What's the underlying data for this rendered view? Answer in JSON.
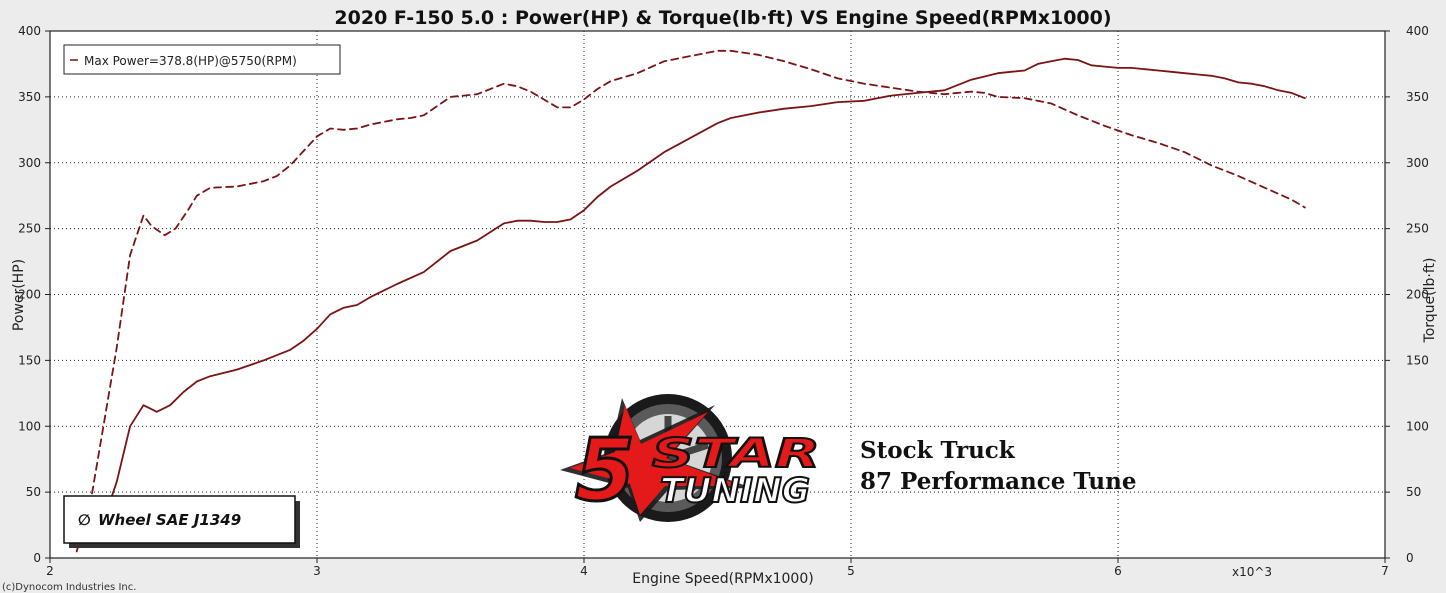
{
  "chart_data": {
    "type": "line",
    "title": "2020 F-150 5.0  : Power(HP) & Torque(lb·ft) VS Engine Speed(RPMx1000)",
    "xlabel": "Engine Speed(RPMx1000)",
    "ylabel_left": "Power(HP)",
    "ylabel_right": "Torque(lb·ft)",
    "x_multiplier_label": "x10^3",
    "xlim": [
      2,
      7
    ],
    "ylim": [
      0,
      400
    ],
    "x_ticks": [
      2,
      3,
      4,
      5,
      6,
      7
    ],
    "y_ticks": [
      0,
      50,
      100,
      150,
      200,
      250,
      300,
      350,
      400
    ],
    "grid": true,
    "legend_text": "Max Power=378.8(HP)@5750(RPM)",
    "legend_position": "top-left",
    "series": [
      {
        "name": "Power(HP)",
        "axis": "left",
        "style": "solid",
        "color": "#7a1414",
        "x": [
          2.17,
          2.25,
          2.3,
          2.35,
          2.4,
          2.45,
          2.5,
          2.55,
          2.6,
          2.7,
          2.8,
          2.9,
          2.95,
          3.0,
          3.05,
          3.1,
          3.15,
          3.2,
          3.3,
          3.4,
          3.5,
          3.6,
          3.7,
          3.75,
          3.8,
          3.85,
          3.9,
          3.95,
          4.0,
          4.05,
          4.1,
          4.2,
          4.3,
          4.4,
          4.5,
          4.55,
          4.65,
          4.75,
          4.85,
          4.95,
          5.05,
          5.15,
          5.25,
          5.35,
          5.45,
          5.55,
          5.6,
          5.65,
          5.7,
          5.75,
          5.8,
          5.85,
          5.9,
          5.95,
          6.0,
          6.05,
          6.1,
          6.15,
          6.2,
          6.25,
          6.3,
          6.35,
          6.4,
          6.45,
          6.5,
          6.55,
          6.6,
          6.65,
          6.7
        ],
        "values": [
          10,
          58,
          100,
          116,
          111,
          116,
          126,
          134,
          138,
          143,
          150,
          158,
          165,
          174,
          185,
          190,
          192,
          198,
          208,
          217,
          233,
          241,
          254,
          256,
          256,
          255,
          255,
          257,
          264,
          274,
          282,
          294,
          308,
          319,
          330,
          334,
          338,
          341,
          343,
          346,
          347,
          351,
          353,
          355,
          363,
          368,
          369,
          370,
          375,
          377,
          379,
          378,
          374,
          373,
          372,
          372,
          371,
          370,
          369,
          368,
          367,
          366,
          364,
          361,
          360,
          358,
          355,
          353,
          349
        ]
      },
      {
        "name": "Torque(lb·ft)",
        "axis": "right",
        "style": "dashed",
        "color": "#7a1414",
        "x": [
          2.1,
          2.15,
          2.2,
          2.25,
          2.3,
          2.35,
          2.38,
          2.43,
          2.47,
          2.52,
          2.55,
          2.6,
          2.7,
          2.8,
          2.85,
          2.9,
          2.95,
          3.0,
          3.05,
          3.1,
          3.15,
          3.2,
          3.3,
          3.35,
          3.4,
          3.5,
          3.55,
          3.6,
          3.7,
          3.75,
          3.8,
          3.85,
          3.9,
          3.95,
          4.0,
          4.05,
          4.1,
          4.2,
          4.3,
          4.4,
          4.5,
          4.55,
          4.65,
          4.75,
          4.85,
          4.95,
          5.05,
          5.15,
          5.25,
          5.35,
          5.45,
          5.5,
          5.55,
          5.65,
          5.75,
          5.85,
          5.95,
          6.05,
          6.15,
          6.25,
          6.35,
          6.45,
          6.55,
          6.65,
          6.7
        ],
        "values": [
          5,
          40,
          100,
          160,
          230,
          260,
          252,
          245,
          250,
          265,
          275,
          281,
          282,
          286,
          290,
          298,
          309,
          320,
          326,
          325,
          326,
          329,
          333,
          334,
          336,
          350,
          351,
          352,
          360,
          358,
          354,
          348,
          342,
          342,
          348,
          356,
          362,
          368,
          377,
          381,
          385,
          385,
          382,
          377,
          371,
          364,
          360,
          357,
          354,
          352,
          354,
          353,
          350,
          349,
          345,
          336,
          328,
          321,
          315,
          308,
          298,
          290,
          281,
          272,
          266
        ]
      }
    ]
  },
  "badge": {
    "text": "Wheel SAE J1349",
    "symbol": "∅"
  },
  "notes": {
    "line1": "Stock Truck",
    "line2": "87 Performance Tune"
  },
  "copyright": "(c)Dynocom Industries Inc.",
  "logo": {
    "number": "5",
    "word1": "STAR",
    "word2": "TUNING"
  },
  "colors": {
    "curve": "#7a1414",
    "background": "#ececec",
    "plot_background": "#ffffff",
    "logo_red": "#e41a1a"
  }
}
